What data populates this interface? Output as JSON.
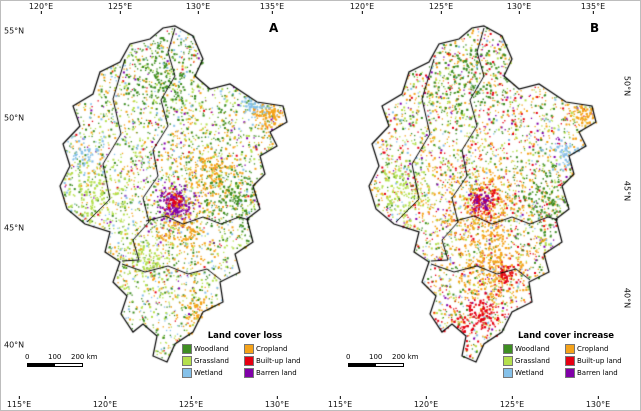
{
  "figure": {
    "background": "#ffffff",
    "boundary_color": "#000000",
    "legend_items": [
      {
        "key": "woodland",
        "label": "Woodland",
        "color": "#3e8e22"
      },
      {
        "key": "cropland",
        "label": "Cropland",
        "color": "#f5a31a"
      },
      {
        "key": "grassland",
        "label": "Grassland",
        "color": "#b5e04e"
      },
      {
        "key": "builtup",
        "label": "Built-up land",
        "color": "#e60012"
      },
      {
        "key": "wetland",
        "label": "Wetland",
        "color": "#85c1e9"
      },
      {
        "key": "barren",
        "label": "Barren land",
        "color": "#8000a8"
      }
    ],
    "panels": [
      {
        "label": "A",
        "legend_title": "Land cover loss",
        "ticks": {
          "top": [
            "120°E",
            "125°E",
            "130°E",
            "135°E"
          ],
          "bottom": [
            "115°E",
            "120°E",
            "125°E",
            "130°E"
          ],
          "left": [
            "55°N",
            "50°N",
            "45°N",
            "40°N"
          ],
          "right": []
        },
        "scalebar": [
          "0",
          "100",
          "200 km"
        ]
      },
      {
        "label": "B",
        "legend_title": "Land cover increase",
        "ticks": {
          "top": [
            "120°E",
            "125°E",
            "130°E",
            "135°E"
          ],
          "bottom": [
            "115°E",
            "120°E",
            "125°E",
            "130°E"
          ],
          "left": [],
          "right": [
            "50°N",
            "45°N",
            "40°N"
          ]
        },
        "scalebar": [
          "0",
          "100",
          "200 km"
        ]
      }
    ]
  }
}
